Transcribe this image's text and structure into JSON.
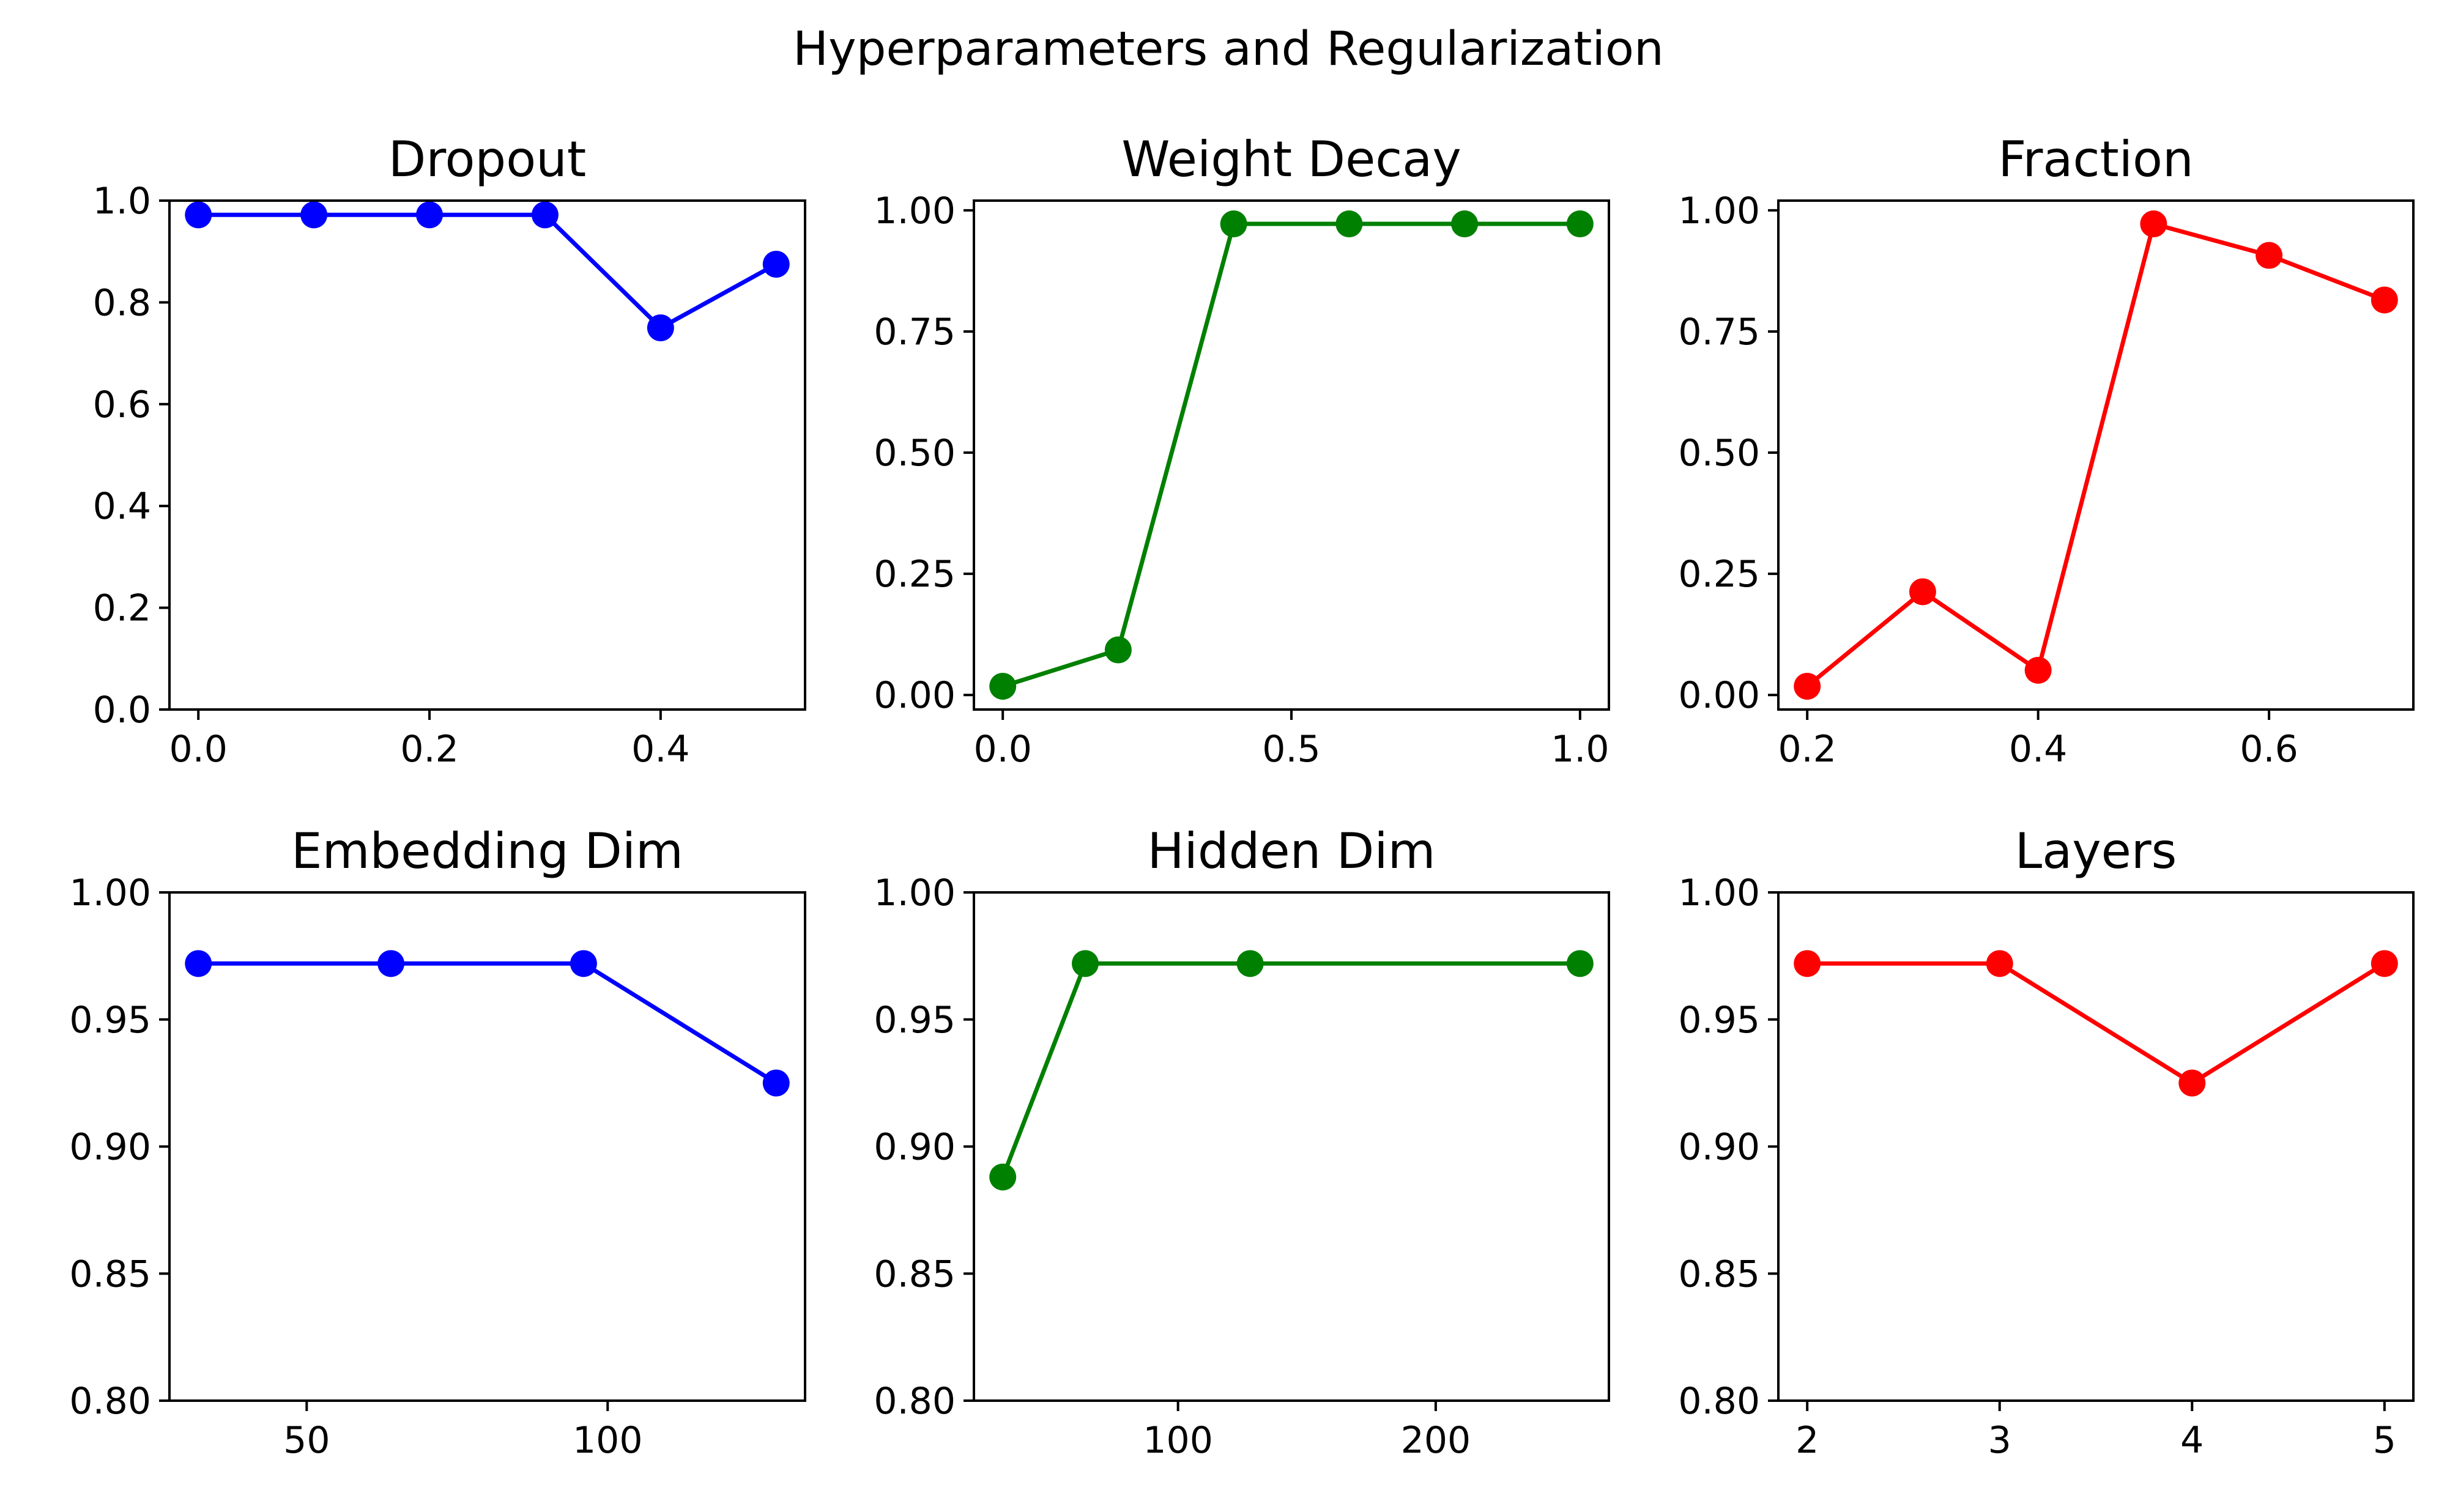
{
  "figure": {
    "title": "Hyperparameters and Regularization"
  },
  "chart_data": [
    {
      "type": "line",
      "title": "Dropout",
      "xlabel": "",
      "ylabel": "",
      "color": "#0000ff",
      "xlim": [
        -0.025,
        0.525
      ],
      "ylim": [
        0.0,
        1.0
      ],
      "xticks": [
        0.0,
        0.2,
        0.4
      ],
      "xtick_labels": [
        "0.0",
        "0.2",
        "0.4"
      ],
      "yticks": [
        0.0,
        0.2,
        0.4,
        0.6,
        0.8,
        1.0
      ],
      "ytick_labels": [
        "0.0",
        "0.2",
        "0.4",
        "0.6",
        "0.8",
        "1.0"
      ],
      "x": [
        0.0,
        0.1,
        0.2,
        0.3,
        0.4,
        0.5
      ],
      "y": [
        0.972,
        0.972,
        0.972,
        0.972,
        0.75,
        0.875
      ],
      "grid": false
    },
    {
      "type": "line",
      "title": "Weight Decay",
      "xlabel": "",
      "ylabel": "",
      "color": "#008000",
      "xlim": [
        -0.05,
        1.05
      ],
      "ylim": [
        -0.03,
        1.02
      ],
      "xticks": [
        0.0,
        0.5,
        1.0
      ],
      "xtick_labels": [
        "0.0",
        "0.5",
        "1.0"
      ],
      "yticks": [
        0.0,
        0.25,
        0.5,
        0.75,
        1.0
      ],
      "ytick_labels": [
        "0.00",
        "0.25",
        "0.50",
        "0.75",
        "1.00"
      ],
      "x": [
        0.0,
        0.2,
        0.4,
        0.6,
        0.8,
        1.0
      ],
      "y": [
        0.018,
        0.093,
        0.972,
        0.972,
        0.972,
        0.972
      ],
      "grid": false
    },
    {
      "type": "line",
      "title": "Fraction",
      "xlabel": "",
      "ylabel": "",
      "color": "#ff0000",
      "xlim": [
        0.175,
        0.725
      ],
      "ylim": [
        -0.03,
        1.02
      ],
      "xticks": [
        0.2,
        0.4,
        0.6
      ],
      "xtick_labels": [
        "0.2",
        "0.4",
        "0.6"
      ],
      "yticks": [
        0.0,
        0.25,
        0.5,
        0.75,
        1.0
      ],
      "ytick_labels": [
        "0.00",
        "0.25",
        "0.50",
        "0.75",
        "1.00"
      ],
      "x": [
        0.2,
        0.3,
        0.4,
        0.5,
        0.6,
        0.7
      ],
      "y": [
        0.018,
        0.213,
        0.051,
        0.972,
        0.907,
        0.815
      ],
      "grid": false
    },
    {
      "type": "line",
      "title": "Embedding Dim",
      "xlabel": "",
      "ylabel": "",
      "color": "#0000ff",
      "xlim": [
        27.2,
        132.8
      ],
      "ylim": [
        0.8,
        1.0
      ],
      "xticks": [
        50,
        100
      ],
      "xtick_labels": [
        "50",
        "100"
      ],
      "yticks": [
        0.8,
        0.85,
        0.9,
        0.95,
        1.0
      ],
      "ytick_labels": [
        "0.80",
        "0.85",
        "0.90",
        "0.95",
        "1.00"
      ],
      "x": [
        32,
        64,
        96,
        128
      ],
      "y": [
        0.972,
        0.972,
        0.972,
        0.925
      ],
      "grid": false
    },
    {
      "type": "line",
      "title": "Hidden Dim",
      "xlabel": "",
      "ylabel": "",
      "color": "#008000",
      "xlim": [
        20.8,
        267.2
      ],
      "ylim": [
        0.8,
        1.0
      ],
      "xticks": [
        100,
        200
      ],
      "xtick_labels": [
        "100",
        "200"
      ],
      "yticks": [
        0.8,
        0.85,
        0.9,
        0.95,
        1.0
      ],
      "ytick_labels": [
        "0.80",
        "0.85",
        "0.90",
        "0.95",
        "1.00"
      ],
      "x": [
        32,
        64,
        128,
        256
      ],
      "y": [
        0.888,
        0.972,
        0.972,
        0.972
      ],
      "grid": false
    },
    {
      "type": "line",
      "title": "Layers",
      "xlabel": "",
      "ylabel": "",
      "color": "#ff0000",
      "xlim": [
        1.85,
        5.15
      ],
      "ylim": [
        0.8,
        1.0
      ],
      "xticks": [
        2,
        3,
        4,
        5
      ],
      "xtick_labels": [
        "2",
        "3",
        "4",
        "5"
      ],
      "yticks": [
        0.8,
        0.85,
        0.9,
        0.95,
        1.0
      ],
      "ytick_labels": [
        "0.80",
        "0.85",
        "0.90",
        "0.95",
        "1.00"
      ],
      "x": [
        2,
        3,
        4,
        5
      ],
      "y": [
        0.972,
        0.972,
        0.925,
        0.972
      ],
      "grid": false
    }
  ]
}
